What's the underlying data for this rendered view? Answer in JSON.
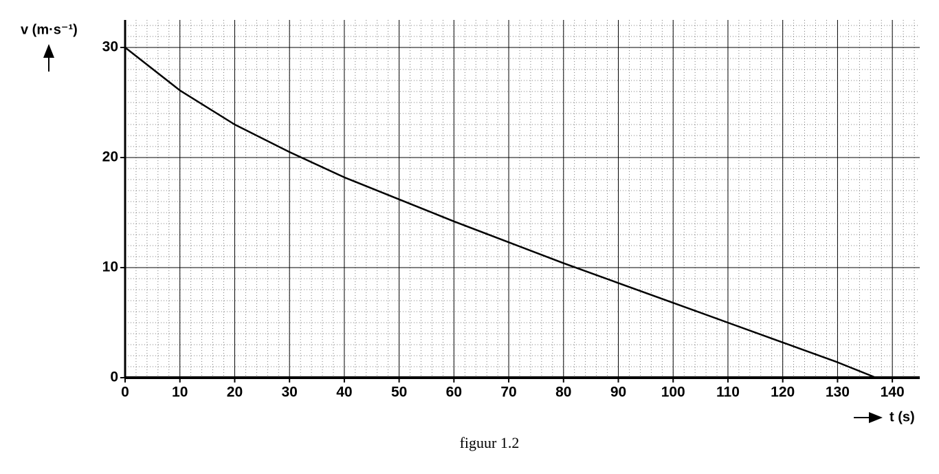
{
  "chart_data": {
    "type": "line",
    "y_label": "v (m·s⁻¹)",
    "x_label": "t (s)",
    "caption": "figuur 1.2",
    "x": [
      0,
      10,
      20,
      30,
      40,
      50,
      60,
      70,
      80,
      90,
      100,
      110,
      120,
      130,
      137
    ],
    "series": [
      {
        "color": "#000000",
        "values": [
          30,
          26.1,
          23,
          20.5,
          18.2,
          16.2,
          14.2,
          12.3,
          10.4,
          8.6,
          6.8,
          5.0,
          3.2,
          1.4,
          0
        ]
      }
    ],
    "xlim": [
      0,
      145
    ],
    "xticks": [
      0,
      10,
      20,
      30,
      40,
      50,
      60,
      70,
      80,
      90,
      100,
      110,
      120,
      130,
      140
    ],
    "ylim": [
      0,
      32.5
    ],
    "yticks": [
      0,
      10,
      20,
      30
    ],
    "grid": true
  }
}
